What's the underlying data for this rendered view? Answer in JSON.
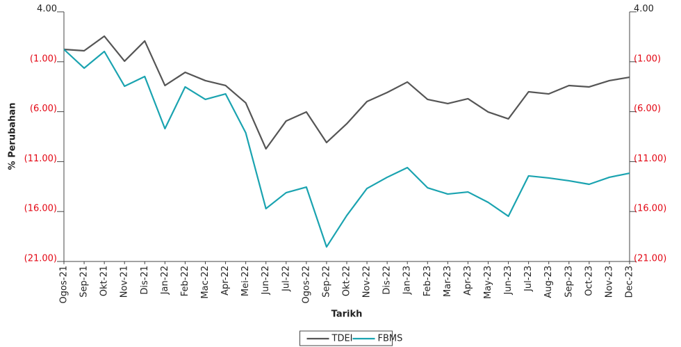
{
  "chart_data": {
    "type": "line",
    "xlabel": "Tarikh",
    "ylabel": "% Perubahan",
    "categories": [
      "Ogos-21",
      "Sep-21",
      "Okt-21",
      "Nov-21",
      "Dis-21",
      "Jan-22",
      "Feb-22",
      "Mac-22",
      "Apr-22",
      "Mei-22",
      "Jun-22",
      "Jul-22",
      "Ogos-22",
      "Sep-22",
      "Okt-22",
      "Nov-22",
      "Dis-22",
      "Jan-23",
      "Feb-23",
      "Mar-23",
      "Apr-23",
      "May-23",
      "Jun-23",
      "Jul-23",
      "Aug-23",
      "Sep-23",
      "Oct-23",
      "Nov-23",
      "Dec-23"
    ],
    "series": [
      {
        "name": "TDEI",
        "color": "#555555",
        "values": [
          0.24,
          0.1,
          1.56,
          -0.94,
          1.08,
          -3.38,
          -2.06,
          -2.89,
          -3.38,
          -5.12,
          -9.72,
          -6.93,
          -6.03,
          -9.09,
          -7.21,
          -4.98,
          -4.08,
          -3.03,
          -4.77,
          -5.19,
          -4.7,
          -6.03,
          -6.72,
          -4.01,
          -4.22,
          -3.38,
          -3.52,
          -2.89,
          -2.55
        ]
      },
      {
        "name": "FBMS",
        "color": "#1aa3b0",
        "values": [
          0.24,
          -1.64,
          0.03,
          -3.45,
          -2.48,
          -7.7,
          -3.52,
          -4.77,
          -4.22,
          -8.12,
          -15.71,
          -14.11,
          -13.55,
          -19.54,
          -16.4,
          -13.69,
          -12.57,
          -11.6,
          -13.62,
          -14.25,
          -14.04,
          -15.08,
          -16.47,
          -12.43,
          -12.64,
          -12.92,
          -13.27,
          -12.57,
          -12.16
        ]
      }
    ],
    "ylim": [
      -21,
      4
    ],
    "yticks": [
      {
        "value": 4,
        "label": "4.00"
      },
      {
        "value": -1,
        "label": "(1.00)"
      },
      {
        "value": -6,
        "label": "(6.00)"
      },
      {
        "value": -11,
        "label": "(11.00)"
      },
      {
        "value": -16,
        "label": "(16.00)"
      },
      {
        "value": -21,
        "label": "(21.00)"
      }
    ],
    "y2lim": [
      -21,
      4
    ],
    "y2ticks": [
      {
        "value": 4,
        "label": "4.00"
      },
      {
        "value": -1,
        "label": "(1.00)"
      },
      {
        "value": -6,
        "label": "(6.00)"
      },
      {
        "value": -11,
        "label": "(11.00)"
      },
      {
        "value": -16,
        "label": "(16.00)"
      },
      {
        "value": -21,
        "label": "(21.00)"
      }
    ],
    "grid": false,
    "legend": "bottom"
  }
}
